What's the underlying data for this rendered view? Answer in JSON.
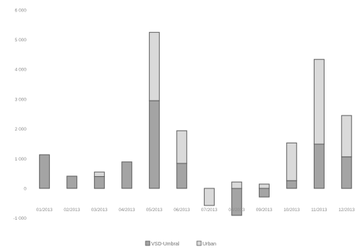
{
  "chart_data": {
    "type": "bar",
    "stacked": true,
    "categories": [
      "01/2013",
      "02/2013",
      "03/2013",
      "04/2013",
      "05/2013",
      "06/2013",
      "07/2013",
      "08/2013",
      "09/2013",
      "10/2013",
      "11/2013",
      "12/2013"
    ],
    "series": [
      {
        "name": "VSD-Umbral",
        "color": "#a4a4a4",
        "values": [
          1130,
          410,
          400,
          890,
          2950,
          840,
          0,
          -910,
          -290,
          260,
          1490,
          1060
        ]
      },
      {
        "name": "Urban",
        "color": "#dadada",
        "values": [
          0,
          0,
          150,
          0,
          2300,
          1100,
          -575,
          215,
          145,
          1270,
          2850,
          1390
        ]
      }
    ],
    "ylim": [
      -1000,
      6000
    ],
    "yticks": [
      6000,
      5000,
      4000,
      3000,
      2000,
      1000,
      0,
      -1000
    ],
    "ytick_labels": [
      "6 000",
      "5 000",
      "4 000",
      "3 000",
      "2 000",
      "1 000",
      "0",
      "-1 000"
    ],
    "grid": false,
    "legend": "bottom"
  }
}
